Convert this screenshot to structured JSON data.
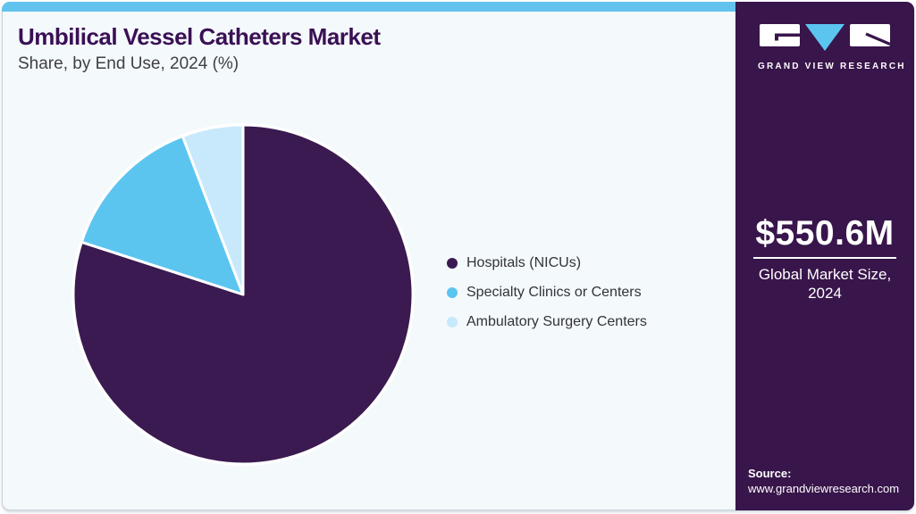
{
  "header": {
    "title": "Umbilical Vessel Catheters Market",
    "subtitle": "Share, by End Use, 2024 (%)"
  },
  "chart_data": {
    "type": "pie",
    "title": "Umbilical Vessel Catheters Market Share, by End Use, 2024 (%)",
    "categories": [
      "Hospitals (NICUs)",
      "Specialty Clinics or Centers",
      "Ambulatory Surgery Centers"
    ],
    "values": [
      80.0,
      14.2,
      5.8
    ],
    "unit": "%",
    "colors": [
      "#3a1a50",
      "#5bc5f0",
      "#c7e9fb"
    ],
    "start_angle_deg": 0,
    "direction": "clockwise",
    "legend_position": "right",
    "slice_separator_color": "#ffffff"
  },
  "sidebar": {
    "brand": "GRAND VIEW RESEARCH",
    "market_size_value": "$550.6M",
    "market_size_label_line1": "Global Market Size,",
    "market_size_label_line2": "2024",
    "source_label": "Source:",
    "source_url": "www.grandviewresearch.com"
  },
  "colors": {
    "topbar_blue": "#62c3ee",
    "card_background": "#f4f9fc",
    "sidebar_purple": "#38154a",
    "title_purple": "#3a1054",
    "logo_triangle_blue": "#5bc5f0"
  }
}
